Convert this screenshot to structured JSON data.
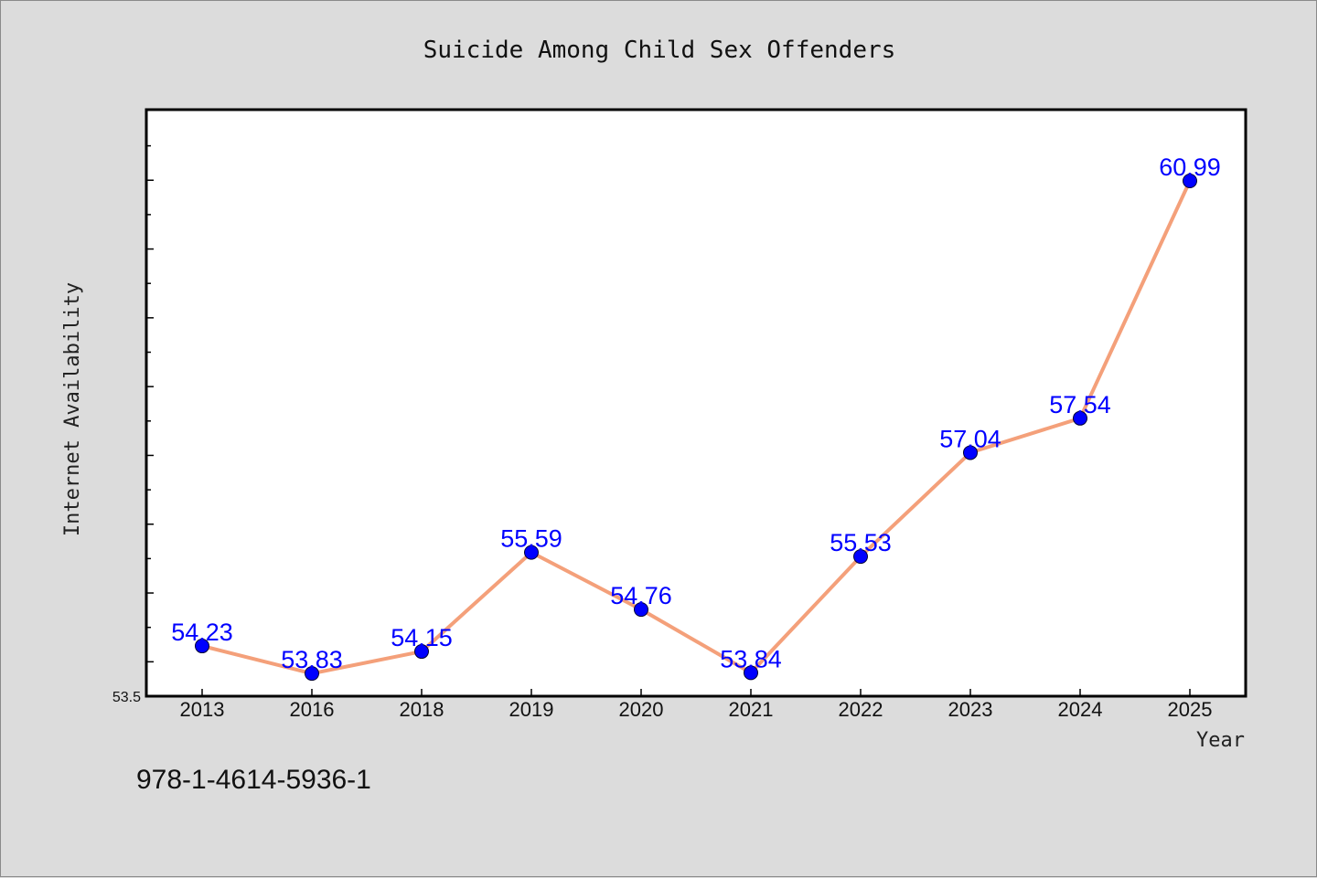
{
  "chart_data": {
    "type": "line",
    "title": "Suicide Among Child Sex Offenders",
    "xlabel": "Year",
    "ylabel": "Internet Availability",
    "categories": [
      "2013",
      "2016",
      "2018",
      "2019",
      "2020",
      "2021",
      "2022",
      "2023",
      "2024",
      "2025"
    ],
    "series": [
      {
        "values": [
          54.23,
          53.83,
          54.15,
          55.59,
          54.76,
          53.84,
          55.53,
          57.04,
          57.54,
          60.99
        ],
        "line_color": "#f4a07a",
        "marker_color": "#0000ff"
      }
    ],
    "data_labels": [
      "54.23",
      "53.83",
      "54.15",
      "55.59",
      "54.76",
      "53.84",
      "55.53",
      "57.04",
      "57.54",
      "60.99"
    ],
    "y_tick_labels": [
      "53.5"
    ],
    "ylim": [
      53.5,
      62.0
    ],
    "grid": false,
    "data_label_color": "#0000ff"
  },
  "footer": {
    "isbn_text": "978-1-4614-5936-1"
  }
}
